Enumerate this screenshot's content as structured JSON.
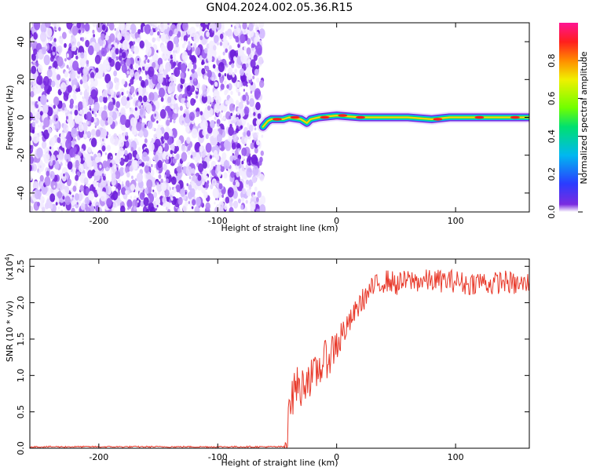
{
  "title": "GN04.2024.002.05.36.R15",
  "chart_data": [
    {
      "type": "heatmap",
      "xlabel": "Height of straight line (km)",
      "ylabel": "Frequency (Hz)",
      "xlim": [
        -258,
        162
      ],
      "ylim": [
        -50,
        50
      ],
      "x_ticks": [
        -200,
        -100,
        0,
        100
      ],
      "y_ticks": [
        -40,
        -20,
        0,
        20,
        40
      ],
      "noise_region_x": [
        -258,
        -62
      ],
      "signal_track": [
        {
          "x": -62,
          "y": -5
        },
        {
          "x": -58,
          "y": -2
        },
        {
          "x": -55,
          "y": -1
        },
        {
          "x": -45,
          "y": -1
        },
        {
          "x": -40,
          "y": 0
        },
        {
          "x": -30,
          "y": -1
        },
        {
          "x": -25,
          "y": -3
        },
        {
          "x": -22,
          "y": -1
        },
        {
          "x": -15,
          "y": 0
        },
        {
          "x": 0,
          "y": 1
        },
        {
          "x": 20,
          "y": 0
        },
        {
          "x": 40,
          "y": 0
        },
        {
          "x": 60,
          "y": 0
        },
        {
          "x": 80,
          "y": -1
        },
        {
          "x": 95,
          "y": 0
        },
        {
          "x": 120,
          "y": 0
        },
        {
          "x": 162,
          "y": 0
        }
      ],
      "colorbar": {
        "label": "Normalized spectral amplitude",
        "ticks": [
          "0.0",
          "0.2",
          "0.4",
          "0.6",
          "0.8"
        ]
      }
    },
    {
      "type": "line",
      "xlabel": "Height of straight line (km)",
      "ylabel": "SNR (10 * v/v)",
      "scale_label": "(x10",
      "scale_exp": "4",
      "scale_close": ")",
      "xlim": [
        -258,
        162
      ],
      "ylim": [
        0,
        2.6
      ],
      "x_ticks": [
        -200,
        -100,
        0,
        100
      ],
      "y_ticks": [
        "0.0",
        "0.5",
        "1.0",
        "1.5",
        "2.0",
        "2.5"
      ],
      "series": [
        {
          "color": "#e8392a",
          "x": [
            -258,
            -220,
            -180,
            -140,
            -100,
            -60,
            -45,
            -42,
            -40,
            -38,
            -35,
            -30,
            -25,
            -20,
            -15,
            -10,
            -5,
            0,
            5,
            10,
            15,
            20,
            25,
            30,
            35,
            40,
            45,
            50,
            60,
            70,
            80,
            90,
            100,
            110,
            120,
            130,
            140,
            150,
            160,
            162
          ],
          "y": [
            0.0,
            0.0,
            0.0,
            0.0,
            0.0,
            0.0,
            0.0,
            0.05,
            0.8,
            0.6,
            0.9,
            0.8,
            1.0,
            0.95,
            1.1,
            1.2,
            1.3,
            1.45,
            1.55,
            1.7,
            1.85,
            2.0,
            2.1,
            2.2,
            2.25,
            2.3,
            2.3,
            2.25,
            2.3,
            2.3,
            2.3,
            2.3,
            2.3,
            2.25,
            2.3,
            2.25,
            2.3,
            2.25,
            2.25,
            2.3
          ]
        }
      ]
    }
  ]
}
